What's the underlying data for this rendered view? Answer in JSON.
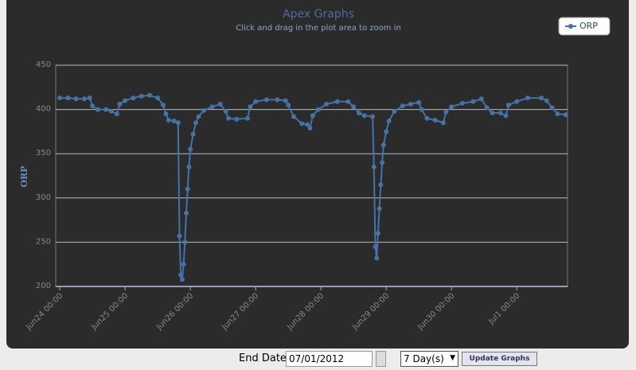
{
  "chart_data": {
    "type": "line",
    "title": "Apex Graphs",
    "subtitle": "Click and drag in the plot area to zoom in",
    "y_label": "ORP",
    "x": [
      "Jun24 00:00",
      "Jun24 03:00",
      "Jun24 06:00",
      "Jun24 09:00",
      "Jun24 11:00",
      "Jun24 12:00",
      "Jun24 14:00",
      "Jun24 17:00",
      "Jun24 19:00",
      "Jun24 21:00",
      "Jun24 22:00",
      "Jun25 00:00",
      "Jun25 03:00",
      "Jun25 06:00",
      "Jun25 09:00",
      "Jun25 12:00",
      "Jun25 14:00",
      "Jun25 15:00",
      "Jun25 16:00",
      "Jun25 18:00",
      "Jun25 19:30",
      "Jun25 20:00",
      "Jun25 20:30",
      "Jun25 21:00",
      "Jun25 21:30",
      "Jun25 22:00",
      "Jun25 22:30",
      "Jun25 23:00",
      "Jun25 23:30",
      "Jun26 00:00",
      "Jun26 01:00",
      "Jun26 02:00",
      "Jun26 03:00",
      "Jun26 05:00",
      "Jun26 08:00",
      "Jun26 11:00",
      "Jun26 13:00",
      "Jun26 14:00",
      "Jun26 17:00",
      "Jun26 21:00",
      "Jun26 22:00",
      "Jun27 00:00",
      "Jun27 04:00",
      "Jun27 08:00",
      "Jun27 11:00",
      "Jun27 12:00",
      "Jun27 14:00",
      "Jun27 17:00",
      "Jun27 19:00",
      "Jun27 20:00",
      "Jun27 21:00",
      "Jun27 23:00",
      "Jun28 02:00",
      "Jun28 06:00",
      "Jun28 10:00",
      "Jun28 12:00",
      "Jun28 14:00",
      "Jun28 16:00",
      "Jun28 19:00",
      "Jun28 19:30",
      "Jun28 20:00",
      "Jun28 20:30",
      "Jun28 21:00",
      "Jun28 21:30",
      "Jun28 22:00",
      "Jun28 22:30",
      "Jun28 23:00",
      "Jun29 00:00",
      "Jun29 01:00",
      "Jun29 03:00",
      "Jun29 06:00",
      "Jun29 09:00",
      "Jun29 12:00",
      "Jun29 13:00",
      "Jun29 15:00",
      "Jun29 18:00",
      "Jun29 21:00",
      "Jun29 22:00",
      "Jun30 00:00",
      "Jun30 04:00",
      "Jun30 08:00",
      "Jun30 11:00",
      "Jun30 13:00",
      "Jun30 15:00",
      "Jun30 18:00",
      "Jun30 20:00",
      "Jun30 21:00",
      "Jul1 00:00",
      "Jul1 04:00",
      "Jul1 09:00",
      "Jul1 11:00",
      "Jul1 13:00",
      "Jul1 15:00",
      "Jul1 18:00"
    ],
    "series": [
      {
        "name": "ORP",
        "color": "#4572a7",
        "values": [
          413,
          413,
          412,
          412,
          413,
          404,
          400,
          400,
          398,
          395,
          406,
          410,
          413,
          415,
          416,
          413,
          405,
          395,
          388,
          387,
          385,
          257,
          213,
          208,
          225,
          250,
          283,
          310,
          335,
          355,
          372,
          385,
          392,
          399,
          403,
          406,
          398,
          390,
          389,
          390,
          403,
          409,
          411,
          411,
          410,
          405,
          392,
          384,
          383,
          379,
          393,
          400,
          406,
          409,
          409,
          403,
          396,
          393,
          392,
          335,
          245,
          232,
          260,
          288,
          315,
          340,
          360,
          375,
          387,
          398,
          404,
          406,
          408,
          400,
          390,
          388,
          385,
          397,
          403,
          407,
          409,
          412,
          402,
          396,
          396,
          393,
          405,
          409,
          413,
          413,
          410,
          402,
          395,
          394
        ]
      }
    ],
    "xlim": [
      "Jun23 22:30",
      "Jul1 18:40"
    ],
    "xticks": [
      "Jun24 00:00",
      "Jun25 00:00",
      "Jun26 00:00",
      "Jun27 00:00",
      "Jun28 00:00",
      "Jun29 00:00",
      "Jun30 00:00",
      "Jul1 00:00"
    ],
    "ylim": [
      200,
      450
    ],
    "yticks": [
      200,
      250,
      300,
      350,
      400,
      450
    ],
    "grid": true,
    "legend": "top-right"
  },
  "form": {
    "end_date_label": "End Date",
    "end_date": "07/01/2012",
    "range": "7 Day(s)",
    "button": "Update Graphs"
  }
}
